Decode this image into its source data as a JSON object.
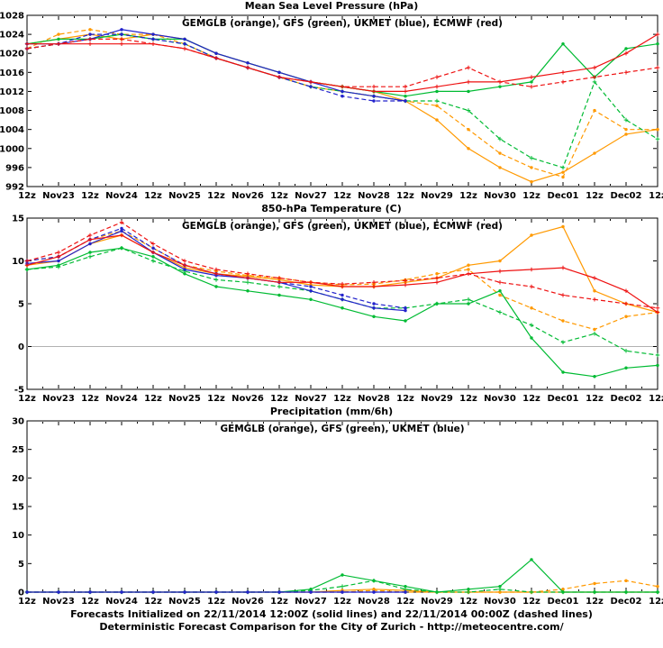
{
  "footer": {
    "line1": "Forecasts Initialized on 22/11/2014 12:00Z (solid lines) and 22/11/2014 00:00Z (dashed lines)",
    "line2": "Deterministic Forecast Comparison for the City of Zurich - http://meteocentre.com/"
  },
  "colors": {
    "gemglb": "#ff9900",
    "gfs": "#00bb33",
    "ukmet": "#2222cc",
    "ecmwf": "#ee1111"
  },
  "chart_data": [
    {
      "type": "line",
      "title": "Mean Sea Level Pressure (hPa)",
      "legend": "GEMGLB (orange), GFS (green), UKMET (blue), ECMWF (red)",
      "xlabel": "",
      "ylabel": "",
      "ylim": [
        992,
        1028
      ],
      "yticks": [
        992,
        996,
        1000,
        1004,
        1008,
        1012,
        1016,
        1020,
        1024,
        1028
      ],
      "grid": false,
      "legend_position": "top-center",
      "categories": [
        "12z",
        "Nov23",
        "12z",
        "Nov24",
        "12z",
        "Nov25",
        "12z",
        "Nov26",
        "12z",
        "Nov27",
        "12z",
        "Nov28",
        "12z",
        "Nov29",
        "12z",
        "Nov30",
        "12z",
        "Dec01",
        "12z",
        "Dec02",
        "12z"
      ],
      "series": [
        {
          "name": "GEMGLB 12:00Z",
          "color": "#ff9900",
          "dash": false,
          "marker": "circle",
          "values": [
            1022,
            1023,
            1024,
            1023,
            1024,
            1023,
            1020,
            1018,
            1016,
            1014,
            1013,
            1012,
            1010,
            1006,
            1000,
            996,
            993,
            995,
            999,
            1003,
            1004
          ]
        },
        {
          "name": "GEMGLB 00:00Z",
          "color": "#ff9900",
          "dash": true,
          "marker": "circle",
          "values": [
            1021,
            1024,
            1025,
            1024,
            1024,
            1022,
            1019,
            1017,
            1015,
            1013,
            1012,
            1011,
            1010,
            1009,
            1004,
            999,
            996,
            994,
            1008,
            1004,
            1004
          ]
        },
        {
          "name": "GFS 12:00Z",
          "color": "#00bb33",
          "dash": false,
          "marker": "circle",
          "values": [
            1022,
            1023,
            1023,
            1024,
            1023,
            1023,
            1020,
            1018,
            1016,
            1014,
            1013,
            1012,
            1011,
            1012,
            1012,
            1013,
            1014,
            1022,
            1015,
            1021,
            1022
          ]
        },
        {
          "name": "GFS 00:00Z",
          "color": "#00bb33",
          "dash": true,
          "marker": "plus",
          "values": [
            1021,
            1022,
            1023,
            1024,
            1023,
            1022,
            1019,
            1017,
            1015,
            1013,
            1012,
            1011,
            1010,
            1010,
            1008,
            1002,
            998,
            996,
            1014,
            1006,
            1002
          ]
        },
        {
          "name": "UKMET 12:00Z",
          "color": "#2222cc",
          "dash": false,
          "marker": "circle",
          "values": [
            1022,
            1022,
            1023,
            1025,
            1024,
            1023,
            1020,
            1018,
            1016,
            1014,
            1012,
            1011,
            1010,
            null,
            null,
            null,
            null,
            null,
            null,
            null,
            null
          ]
        },
        {
          "name": "UKMET 00:00Z",
          "color": "#2222cc",
          "dash": true,
          "marker": "circle",
          "values": [
            1021,
            1022,
            1024,
            1024,
            1023,
            1022,
            1019,
            1017,
            1015,
            1013,
            1011,
            1010,
            1010,
            null,
            null,
            null,
            null,
            null,
            null,
            null,
            null
          ]
        },
        {
          "name": "ECMWF 12:00Z",
          "color": "#ee1111",
          "dash": false,
          "marker": "plus",
          "values": [
            1022,
            1022,
            1022,
            1022,
            1022,
            1021,
            1019,
            1017,
            1015,
            1014,
            1013,
            1012,
            1012,
            1013,
            1014,
            1014,
            1015,
            1016,
            1017,
            1020,
            1024
          ]
        },
        {
          "name": "ECMWF 00:00Z",
          "color": "#ee1111",
          "dash": true,
          "marker": "plus",
          "values": [
            1021,
            1022,
            1023,
            1023,
            1022,
            1021,
            1019,
            1017,
            1015,
            1014,
            1013,
            1013,
            1013,
            1015,
            1017,
            1014,
            1013,
            1014,
            1015,
            1016,
            1017
          ]
        }
      ]
    },
    {
      "type": "line",
      "title": "850-hPa Temperature (C)",
      "legend": "GEMGLB (orange), GFS (green), UKMET (blue), ECMWF (red)",
      "xlabel": "",
      "ylabel": "",
      "ylim": [
        -5,
        15
      ],
      "yticks": [
        -5,
        0,
        5,
        10,
        15
      ],
      "refline": 0,
      "grid": false,
      "legend_position": "top-center",
      "categories": [
        "12z",
        "Nov23",
        "12z",
        "Nov24",
        "12z",
        "Nov25",
        "12z",
        "Nov26",
        "12z",
        "Nov27",
        "12z",
        "Nov28",
        "12z",
        "Nov29",
        "12z",
        "Nov30",
        "12z",
        "Dec01",
        "12z",
        "Dec02",
        "12z"
      ],
      "series": [
        {
          "name": "GEMGLB 12:00Z",
          "color": "#ff9900",
          "dash": false,
          "marker": "circle",
          "values": [
            9.5,
            10,
            12,
            13,
            11,
            9.2,
            8.5,
            8.2,
            7.8,
            7.2,
            7,
            7,
            7.5,
            8,
            9.5,
            10,
            13,
            14,
            6.5,
            5,
            4
          ]
        },
        {
          "name": "GEMGLB 00:00Z",
          "color": "#ff9900",
          "dash": true,
          "marker": "circle",
          "values": [
            10,
            10.5,
            12.5,
            13.5,
            11.5,
            9.5,
            8.8,
            8.3,
            8,
            7.5,
            7.2,
            7.3,
            7.8,
            8.5,
            9,
            6,
            4.5,
            3,
            2,
            3.5,
            4
          ]
        },
        {
          "name": "GFS 12:00Z",
          "color": "#00bb33",
          "dash": false,
          "marker": "circle",
          "values": [
            9,
            9.5,
            11,
            11.5,
            10.5,
            8.5,
            7,
            6.5,
            6,
            5.5,
            4.5,
            3.5,
            3,
            5,
            5,
            6.5,
            1,
            -3,
            -3.5,
            -2.5,
            -2.2
          ]
        },
        {
          "name": "GFS 00:00Z",
          "color": "#00bb33",
          "dash": true,
          "marker": "plus",
          "values": [
            9,
            9.3,
            10.5,
            11.5,
            10,
            8.8,
            7.8,
            7.5,
            7,
            6.5,
            5.5,
            4.5,
            4.5,
            5,
            5.5,
            4,
            2.5,
            0.5,
            1.5,
            -0.5,
            -1
          ]
        },
        {
          "name": "UKMET 12:00Z",
          "color": "#2222cc",
          "dash": false,
          "marker": "circle",
          "values": [
            9.7,
            10,
            12,
            13.5,
            11,
            9,
            8.3,
            8,
            7.5,
            6.5,
            5.5,
            4.5,
            4.2,
            null,
            null,
            null,
            null,
            null,
            null,
            null,
            null
          ]
        },
        {
          "name": "UKMET 00:00Z",
          "color": "#2222cc",
          "dash": true,
          "marker": "circle",
          "values": [
            10,
            10.5,
            12.5,
            13.8,
            11.5,
            9.5,
            8.5,
            8,
            7.5,
            7,
            6,
            5,
            4.5,
            null,
            null,
            null,
            null,
            null,
            null,
            null,
            null
          ]
        },
        {
          "name": "ECMWF 12:00Z",
          "color": "#ee1111",
          "dash": false,
          "marker": "plus",
          "values": [
            9.5,
            10.5,
            12.5,
            13,
            11,
            9.5,
            8.5,
            8,
            7.5,
            7.5,
            7,
            7,
            7.2,
            7.5,
            8.5,
            8.8,
            9,
            9.2,
            8,
            6.5,
            4
          ]
        },
        {
          "name": "ECMWF 00:00Z",
          "color": "#ee1111",
          "dash": true,
          "marker": "plus",
          "values": [
            10,
            11,
            13,
            14.5,
            12,
            10,
            9,
            8.5,
            8,
            7.5,
            7.3,
            7.5,
            7.7,
            8,
            8.5,
            7.5,
            7,
            6,
            5.5,
            5,
            4.5
          ]
        }
      ]
    },
    {
      "type": "line",
      "title": "Precipitation (mm/6h)",
      "legend": "GEMGLB (orange), GFS (green), UKMET (blue)",
      "xlabel": "",
      "ylabel": "",
      "ylim": [
        0,
        30
      ],
      "yticks": [
        0,
        5,
        10,
        15,
        20,
        25,
        30
      ],
      "grid": false,
      "legend_position": "top-center",
      "categories": [
        "12z",
        "Nov23",
        "12z",
        "Nov24",
        "12z",
        "Nov25",
        "12z",
        "Nov26",
        "12z",
        "Nov27",
        "12z",
        "Nov28",
        "12z",
        "Nov29",
        "12z",
        "Nov30",
        "12z",
        "Dec01",
        "12z",
        "Dec02",
        "12z"
      ],
      "series": [
        {
          "name": "GEMGLB 12:00Z",
          "color": "#ff9900",
          "dash": false,
          "marker": "circle",
          "values": [
            0,
            0,
            0,
            0,
            0,
            0,
            0,
            0,
            0,
            0,
            0.3,
            0.5,
            0.3,
            0,
            0,
            0,
            0,
            0,
            0,
            0,
            0
          ]
        },
        {
          "name": "GEMGLB 00:00Z",
          "color": "#ff9900",
          "dash": true,
          "marker": "circle",
          "values": [
            0,
            0,
            0,
            0,
            0,
            0,
            0,
            0,
            0,
            0,
            0,
            0.3,
            0,
            0,
            0,
            0,
            0,
            0.5,
            1.5,
            2,
            1
          ]
        },
        {
          "name": "GFS 12:00Z",
          "color": "#00bb33",
          "dash": false,
          "marker": "circle",
          "values": [
            0,
            0,
            0,
            0,
            0,
            0,
            0,
            0,
            0,
            0.5,
            3,
            2,
            1,
            0,
            0.5,
            1,
            5.7,
            0,
            0,
            0,
            0
          ]
        },
        {
          "name": "GFS 00:00Z",
          "color": "#00bb33",
          "dash": true,
          "marker": "plus",
          "values": [
            0,
            0,
            0,
            0,
            0,
            0,
            0,
            0,
            0,
            0.3,
            1,
            2,
            0.5,
            0,
            0,
            0.5,
            0,
            0,
            0,
            0,
            0
          ]
        },
        {
          "name": "UKMET 12:00Z",
          "color": "#2222cc",
          "dash": false,
          "marker": "circle",
          "values": [
            0,
            0,
            0,
            0,
            0,
            0,
            0,
            0,
            0,
            0,
            0,
            0,
            0,
            null,
            null,
            null,
            null,
            null,
            null,
            null,
            null
          ]
        },
        {
          "name": "UKMET 00:00Z",
          "color": "#2222cc",
          "dash": true,
          "marker": "circle",
          "values": [
            0,
            0,
            0,
            0,
            0,
            0,
            0,
            0,
            0,
            0,
            0,
            0,
            0,
            null,
            null,
            null,
            null,
            null,
            null,
            null,
            null
          ]
        }
      ]
    }
  ]
}
